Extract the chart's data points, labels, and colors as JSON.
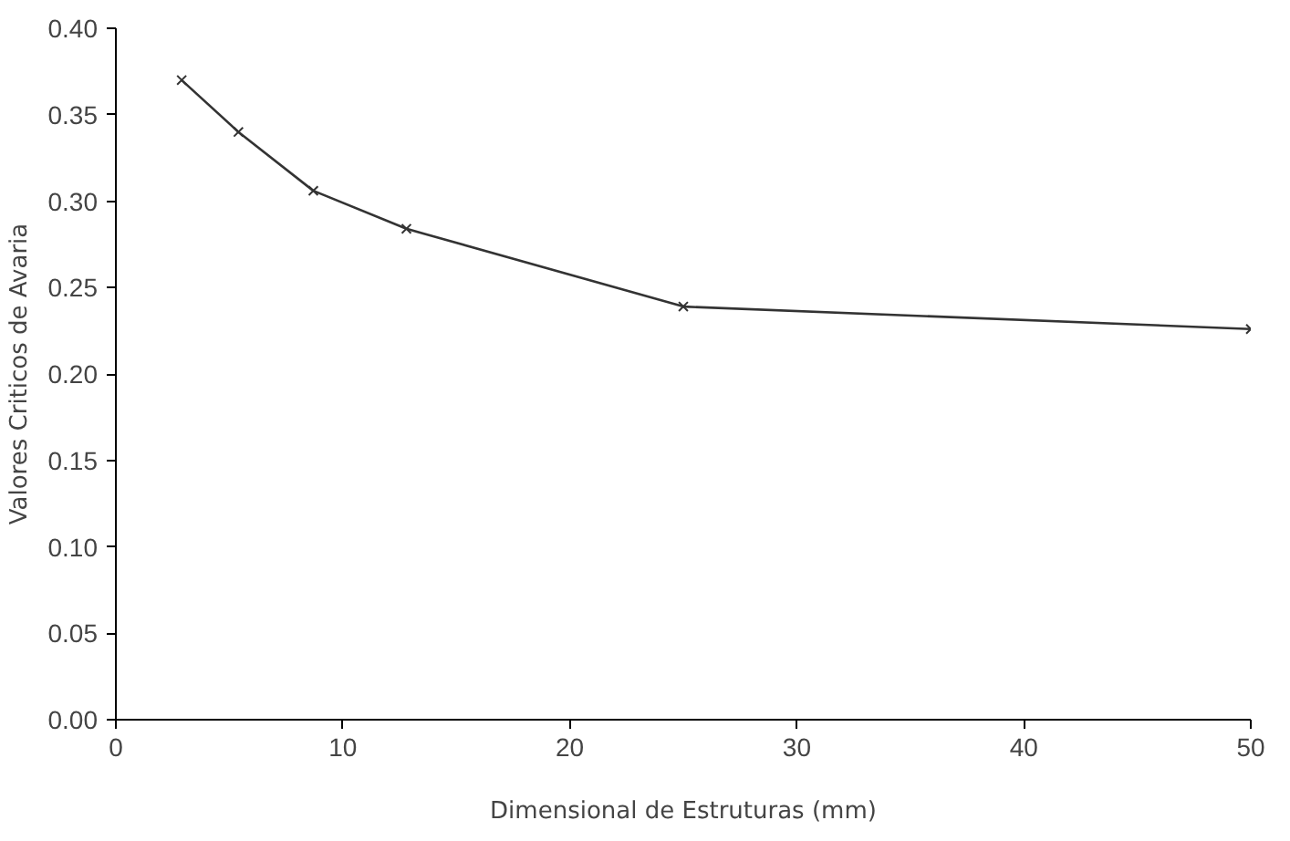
{
  "chart_data": {
    "type": "line",
    "xlabel": "Dimensional de Estruturas (mm)",
    "ylabel": "Valores Criticos de Avaria",
    "x": [
      2.9,
      5.4,
      8.7,
      12.8,
      25.0,
      50
    ],
    "series": [
      {
        "color": "#333333",
        "values": [
          0.37,
          0.34,
          0.306,
          0.284,
          0.239,
          0.226
        ]
      }
    ],
    "xlim": [
      0,
      50
    ],
    "ylim": [
      0,
      0.4
    ],
    "xticks": [
      0,
      10,
      20,
      30,
      40,
      50
    ],
    "yticks": [
      {
        "value": 0,
        "label": "0.00"
      },
      {
        "value": 0.05,
        "label": "0.05"
      },
      {
        "value": 0.1,
        "label": "0.10"
      },
      {
        "value": 0.15,
        "label": "0.15"
      },
      {
        "value": 0.2,
        "label": "0.20"
      },
      {
        "value": 0.25,
        "label": "0.25"
      },
      {
        "value": 0.3,
        "label": "0.30"
      },
      {
        "value": 0.35,
        "label": "0.35"
      },
      {
        "value": 0.4,
        "label": "0.40"
      }
    ],
    "grid": false,
    "marker": "cross",
    "line_style": "solid"
  }
}
